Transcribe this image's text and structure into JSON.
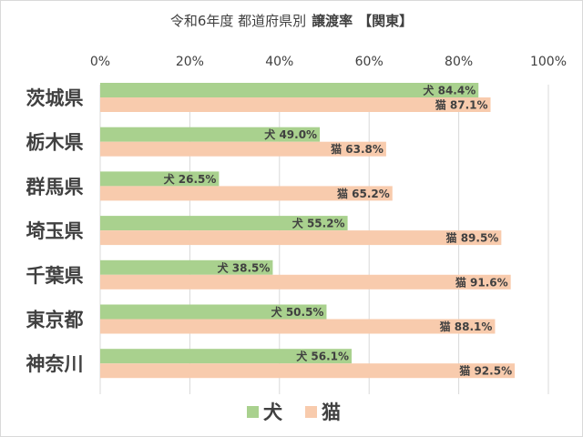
{
  "chart_data": {
    "type": "bar",
    "orientation": "horizontal",
    "title": {
      "main": "令和6年度 都道府県別",
      "bold": "譲渡率",
      "bracket": "【関東】"
    },
    "categories": [
      "茨城県",
      "栃木県",
      "群馬県",
      "埼玉県",
      "千葉県",
      "東京都",
      "神奈川"
    ],
    "series": [
      {
        "name": "犬",
        "color": "#a9d18e",
        "values": [
          84.4,
          49.0,
          26.5,
          55.2,
          38.5,
          50.5,
          56.1
        ],
        "labels": [
          "犬 84.4%",
          "犬 49.0%",
          "犬 26.5%",
          "犬 55.2%",
          "犬 38.5%",
          "犬 50.5%",
          "犬 56.1%"
        ]
      },
      {
        "name": "猫",
        "color": "#f8cbad",
        "values": [
          87.1,
          63.8,
          65.2,
          89.5,
          91.6,
          88.1,
          92.5
        ],
        "labels": [
          "猫 87.1%",
          "猫 63.8%",
          "猫 65.2%",
          "猫 89.5%",
          "猫 91.6%",
          "猫 88.1%",
          "猫 92.5%"
        ]
      }
    ],
    "xlim": [
      0,
      100
    ],
    "ticks": [
      0,
      20,
      40,
      60,
      80,
      100
    ],
    "tick_labels": [
      "0%",
      "20%",
      "40%",
      "60%",
      "80%",
      "100%"
    ],
    "grid": true,
    "legend": "bottom-center",
    "gridColor": "#d9d9d9",
    "textColor": "#404040"
  }
}
